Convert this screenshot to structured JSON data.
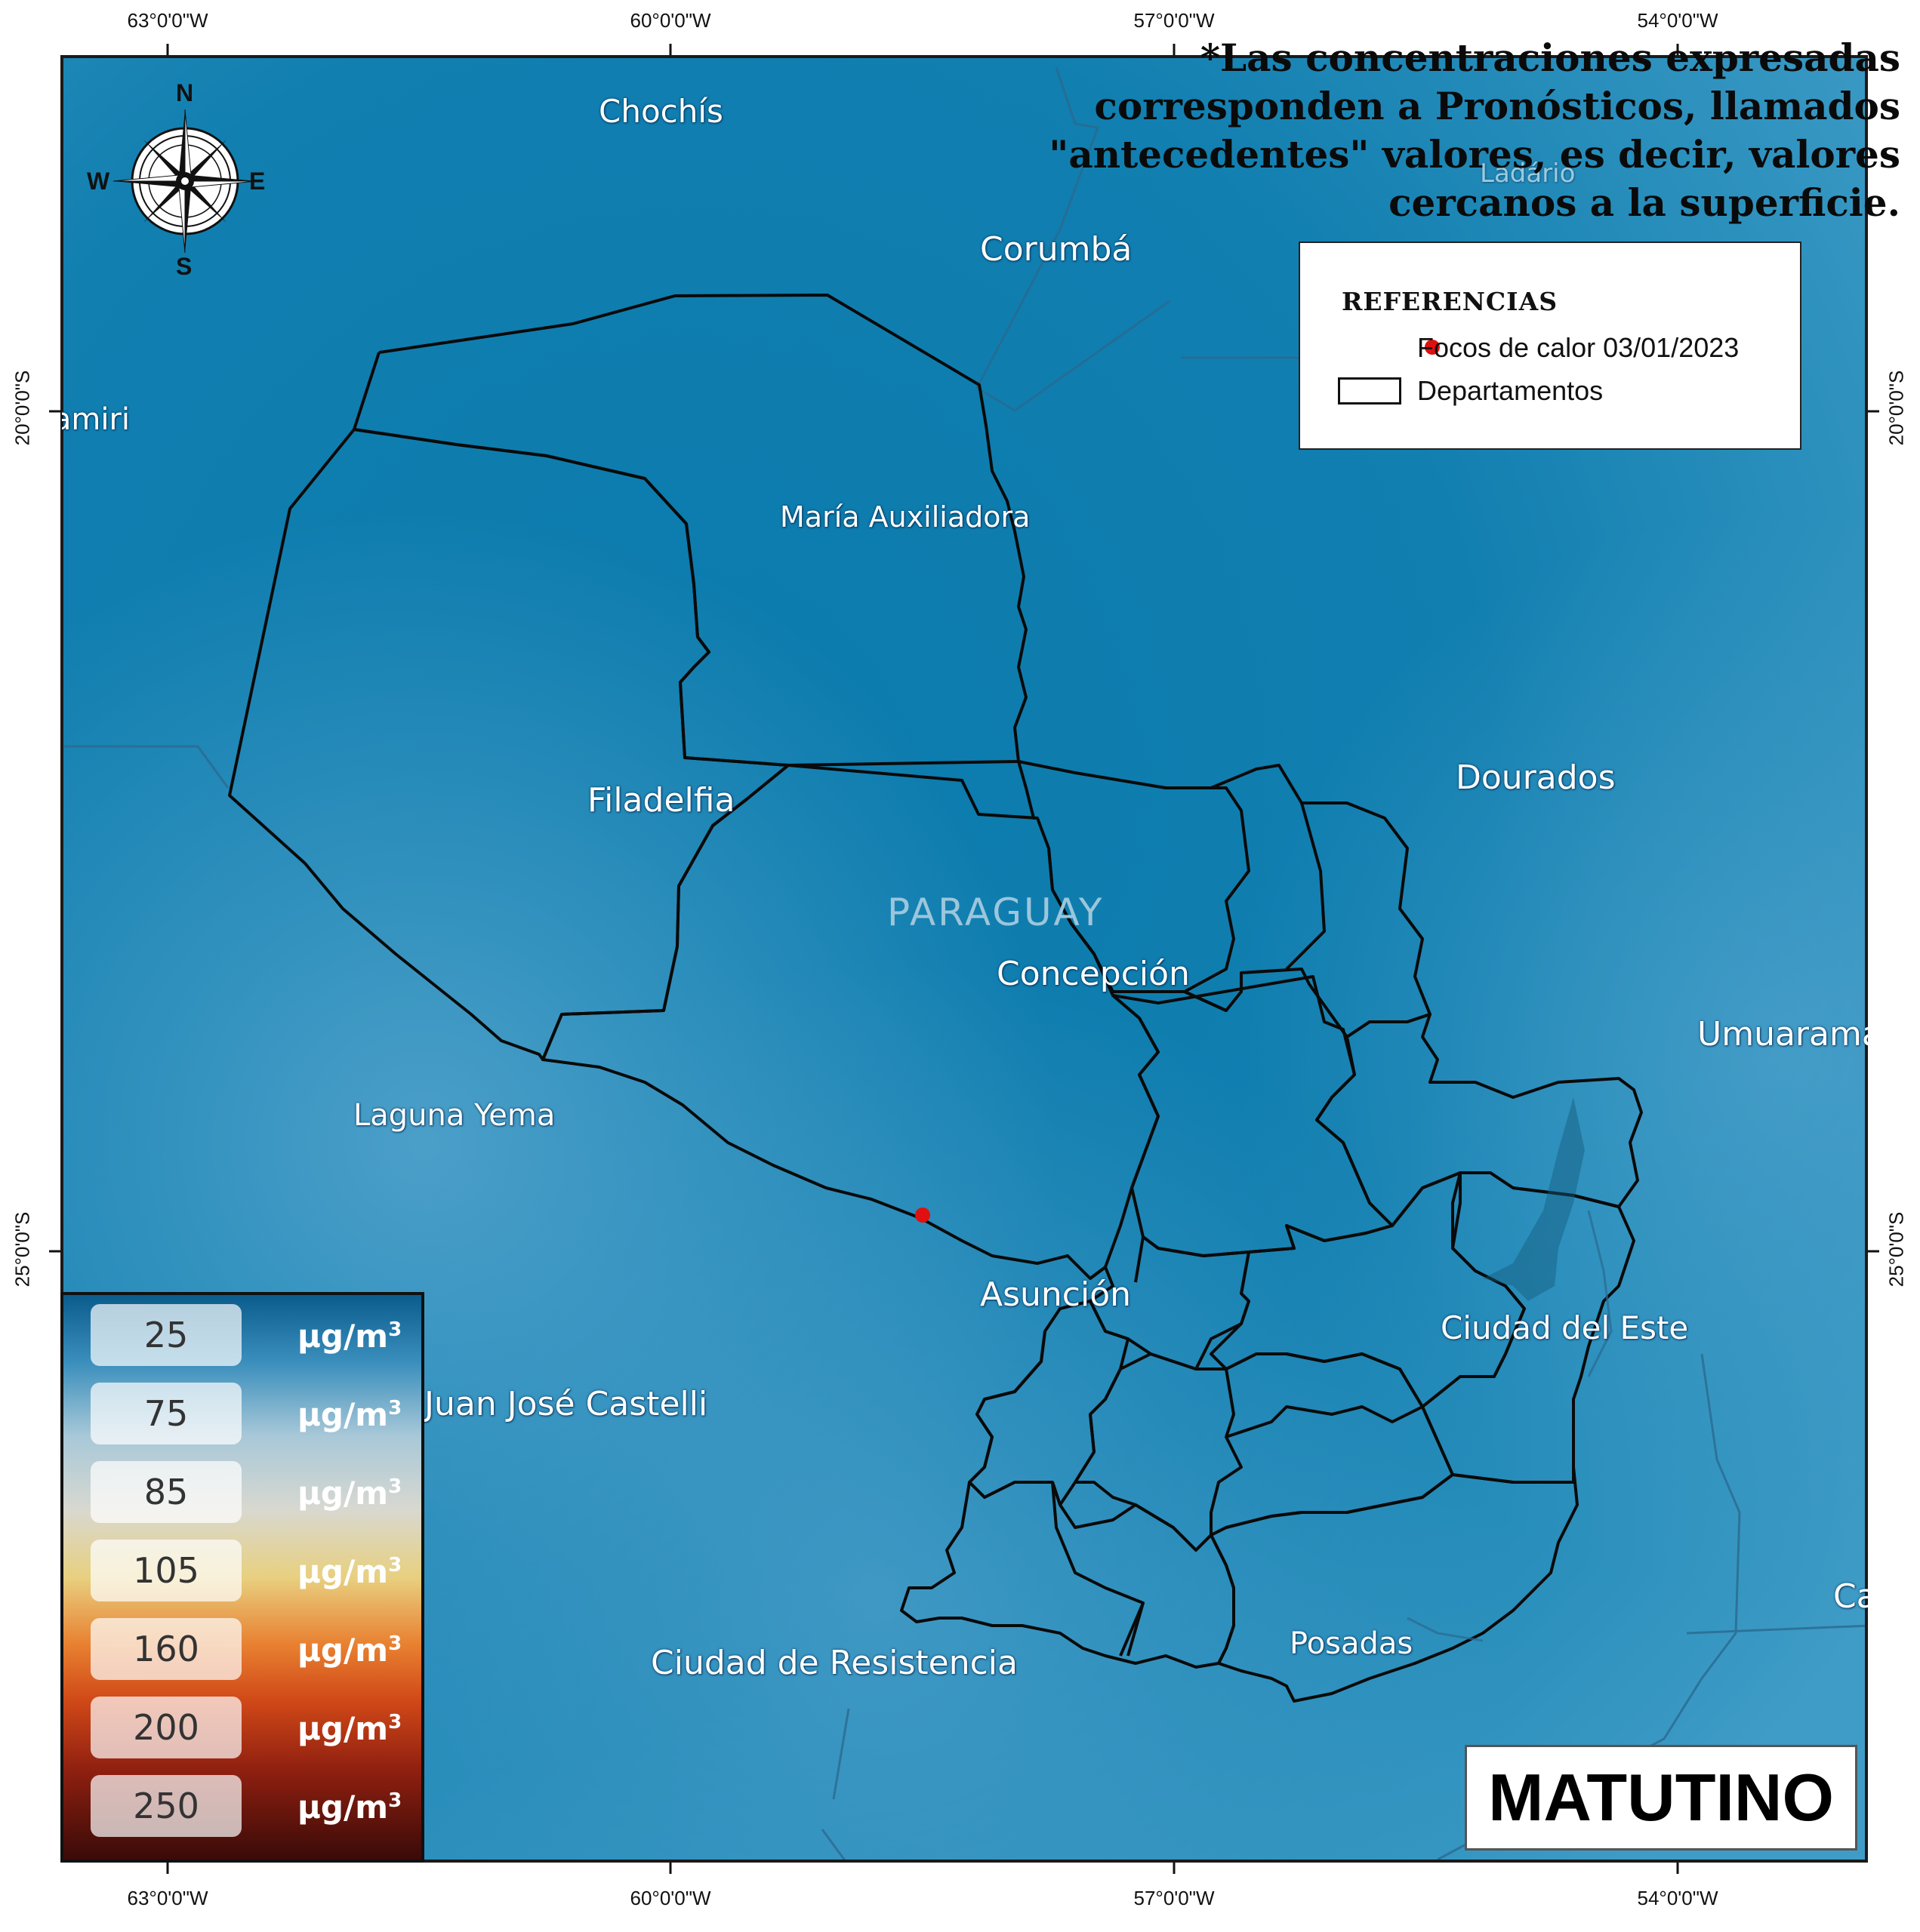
{
  "coordinates": {
    "longitudes": [
      "63°0'0\"W",
      "60°0'0\"W",
      "57°0'0\"W",
      "54°0'0\"W"
    ],
    "latitudes": [
      "20°0'0\"S",
      "25°0'0\"S"
    ]
  },
  "note": {
    "line1": "*Las concentraciones expresadas",
    "line2": "corresponden a Pronósticos, llamados",
    "line3": "\"antecedentes\" valores, es decir, valores",
    "line4": "cercanos a la superficie."
  },
  "legend": {
    "title": "REFERENCIAS",
    "hotspots_label": "Focos de calor 03/01/2023",
    "departments_label": "Departamentos",
    "hotspot_color": "#e01010"
  },
  "compass": {
    "n": "N",
    "s": "S",
    "e": "E",
    "w": "W"
  },
  "cities": [
    {
      "id": "chochis",
      "name": "Chochís"
    },
    {
      "id": "corumba",
      "name": "Corumbá"
    },
    {
      "id": "ladario",
      "name": "Ladário"
    },
    {
      "id": "camiri",
      "name": "Camiri"
    },
    {
      "id": "maria-auxiliadora",
      "name": "María Auxiliadora"
    },
    {
      "id": "filadelfia",
      "name": "Filadelfia"
    },
    {
      "id": "dourados",
      "name": "Dourados"
    },
    {
      "id": "paraguay",
      "name": "PARAGUAY"
    },
    {
      "id": "concepcion",
      "name": "Concepción"
    },
    {
      "id": "umuarama",
      "name": "Umuarama"
    },
    {
      "id": "laguna-yema",
      "name": "Laguna Yema"
    },
    {
      "id": "asuncion",
      "name": "Asunción"
    },
    {
      "id": "ciudad-del-este",
      "name": "Ciudad del Este"
    },
    {
      "id": "juan-jose-castelli",
      "name": "Juan José Castelli"
    },
    {
      "id": "posadas",
      "name": "Posadas"
    },
    {
      "id": "ciudad-de-resistencia",
      "name": "Ciudad de Resistencia"
    },
    {
      "id": "cascavel",
      "name": "Cascavel"
    }
  ],
  "scale": {
    "unit": "µg/m",
    "unit_sup": "3",
    "values": [
      "25",
      "75",
      "85",
      "105",
      "160",
      "200",
      "250"
    ],
    "gradient_colors": [
      "#0a5c8c",
      "#5aa6cc",
      "#c8d8e0",
      "#e0c880",
      "#e06020",
      "#a02810",
      "#3a0a08"
    ]
  },
  "period": "MATUTINO",
  "colors": {
    "map_base": "#0a7fb0",
    "department_line": "#0a0a0a",
    "label": "#ffffff"
  }
}
